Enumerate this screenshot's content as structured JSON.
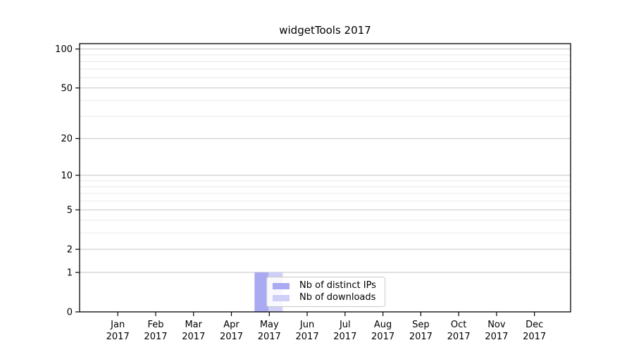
{
  "chart_data": {
    "type": "bar",
    "title": "widgetTools 2017",
    "categories": [
      "Jan 2017",
      "Feb 2017",
      "Mar 2017",
      "Apr 2017",
      "May 2017",
      "Jun 2017",
      "Jul 2017",
      "Aug 2017",
      "Sep 2017",
      "Oct 2017",
      "Nov 2017",
      "Dec 2017"
    ],
    "series": [
      {
        "name": "Nb of distinct IPs",
        "color": "#aaaaf2",
        "values": [
          0,
          0,
          0,
          0,
          1,
          0,
          0,
          0,
          0,
          0,
          0,
          0
        ]
      },
      {
        "name": "Nb of downloads",
        "color": "#cfcff8",
        "values": [
          0,
          0,
          0,
          0,
          1,
          0,
          0,
          0,
          0,
          0,
          0,
          0
        ]
      }
    ],
    "y_axis": {
      "scale": "log1p",
      "major_ticks": [
        0,
        1,
        2,
        5,
        10,
        20,
        50,
        100
      ],
      "minor_gridlines": [
        3,
        4,
        6,
        7,
        8,
        9,
        30,
        40,
        60,
        70,
        80,
        90
      ],
      "max": 110
    },
    "x_axis": {
      "label_line2": "2017"
    },
    "legend": {
      "position": "inside-lower-center"
    },
    "colors": {
      "major_grid": "#c3c3c3",
      "minor_grid": "#e9e9e9",
      "axis": "#000000",
      "text": "#000000",
      "background": "#ffffff"
    }
  }
}
